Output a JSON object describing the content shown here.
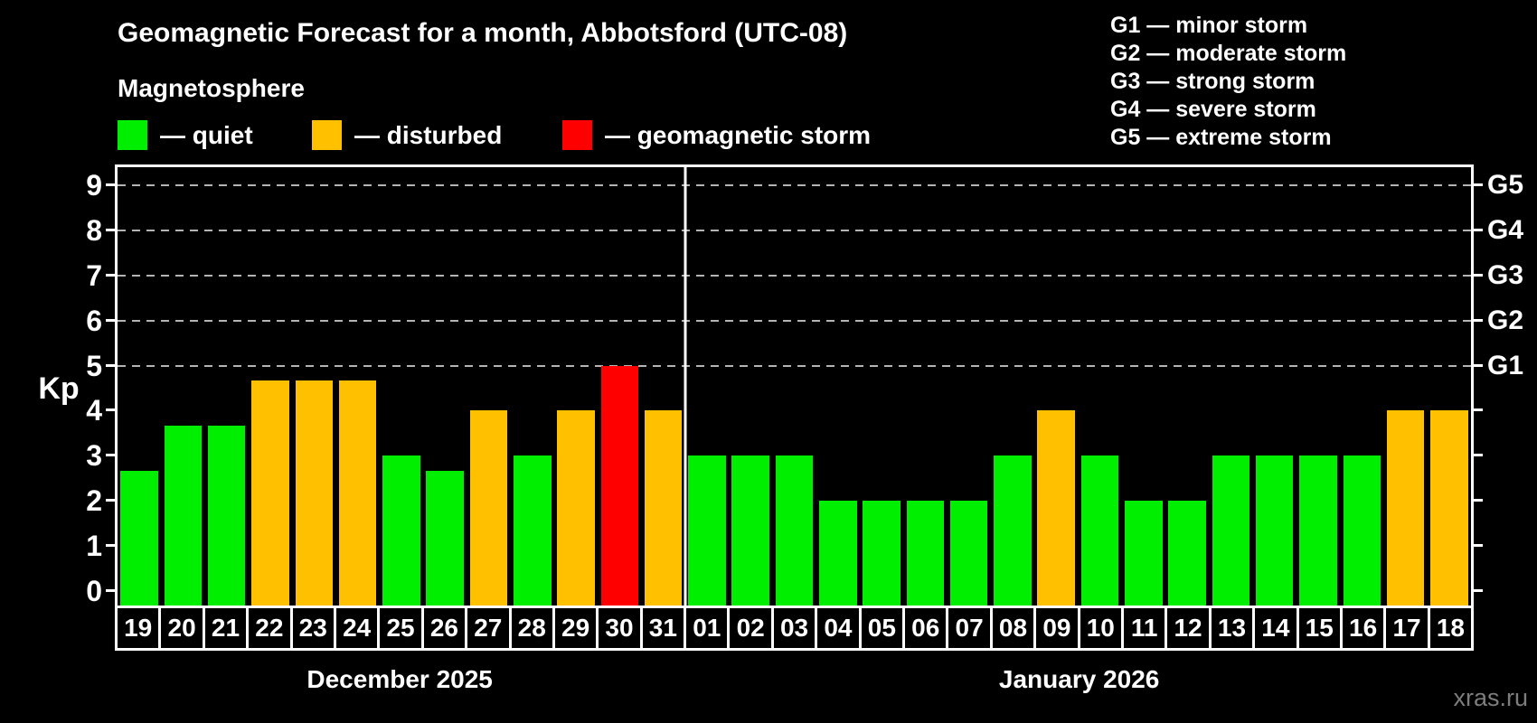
{
  "watermark": "xras.ru",
  "colors": {
    "quiet": "#00EE00",
    "disturbed": "#FFC000",
    "storm": "#FF0000",
    "grid": "#B4B4B4",
    "axis": "#FFFFFF",
    "watermark": "#7D7D7D",
    "background": "#000000"
  },
  "legend": {
    "title": "Magnetosphere",
    "items": [
      {
        "label": "— quiet",
        "status": "quiet"
      },
      {
        "label": "— disturbed",
        "status": "disturbed"
      },
      {
        "label": "— geomagnetic storm",
        "status": "storm"
      }
    ]
  },
  "storm_scale": [
    "G1 — minor storm",
    "G2 — moderate storm",
    "G3 — strong storm",
    "G4 — severe storm",
    "G5 — extreme storm"
  ],
  "chart_data": {
    "type": "bar",
    "title": "Geomagnetic Forecast for a month, Abbotsford (UTC-08)",
    "ylabel": "Kp",
    "ylim": [
      -0.32,
      9.4
    ],
    "yticks": [
      0,
      1,
      2,
      3,
      4,
      5,
      6,
      7,
      8,
      9
    ],
    "gridlines": [
      5,
      6,
      7,
      8,
      9
    ],
    "right_axis": [
      {
        "value": 5,
        "label": "G1"
      },
      {
        "value": 6,
        "label": "G2"
      },
      {
        "value": 7,
        "label": "G3"
      },
      {
        "value": 8,
        "label": "G4"
      },
      {
        "value": 9,
        "label": "G5"
      }
    ],
    "legend_position": "top",
    "grid": "dashed-horizontal-5-to-9",
    "months": [
      {
        "label": "December 2025",
        "days": [
          {
            "day": "19",
            "kp": 2.67,
            "status": "quiet"
          },
          {
            "day": "20",
            "kp": 3.67,
            "status": "quiet"
          },
          {
            "day": "21",
            "kp": 3.67,
            "status": "quiet"
          },
          {
            "day": "22",
            "kp": 4.67,
            "status": "disturbed"
          },
          {
            "day": "23",
            "kp": 4.67,
            "status": "disturbed"
          },
          {
            "day": "24",
            "kp": 4.67,
            "status": "disturbed"
          },
          {
            "day": "25",
            "kp": 3.0,
            "status": "quiet"
          },
          {
            "day": "26",
            "kp": 2.67,
            "status": "quiet"
          },
          {
            "day": "27",
            "kp": 4.0,
            "status": "disturbed"
          },
          {
            "day": "28",
            "kp": 3.0,
            "status": "quiet"
          },
          {
            "day": "29",
            "kp": 4.0,
            "status": "disturbed"
          },
          {
            "day": "30",
            "kp": 5.0,
            "status": "storm"
          },
          {
            "day": "31",
            "kp": 4.0,
            "status": "disturbed"
          }
        ]
      },
      {
        "label": "January 2026",
        "days": [
          {
            "day": "01",
            "kp": 3.0,
            "status": "quiet"
          },
          {
            "day": "02",
            "kp": 3.0,
            "status": "quiet"
          },
          {
            "day": "03",
            "kp": 3.0,
            "status": "quiet"
          },
          {
            "day": "04",
            "kp": 2.0,
            "status": "quiet"
          },
          {
            "day": "05",
            "kp": 2.0,
            "status": "quiet"
          },
          {
            "day": "06",
            "kp": 2.0,
            "status": "quiet"
          },
          {
            "day": "07",
            "kp": 2.0,
            "status": "quiet"
          },
          {
            "day": "08",
            "kp": 3.0,
            "status": "quiet"
          },
          {
            "day": "09",
            "kp": 4.0,
            "status": "disturbed"
          },
          {
            "day": "10",
            "kp": 3.0,
            "status": "quiet"
          },
          {
            "day": "11",
            "kp": 2.0,
            "status": "quiet"
          },
          {
            "day": "12",
            "kp": 2.0,
            "status": "quiet"
          },
          {
            "day": "13",
            "kp": 3.0,
            "status": "quiet"
          },
          {
            "day": "14",
            "kp": 3.0,
            "status": "quiet"
          },
          {
            "day": "15",
            "kp": 3.0,
            "status": "quiet"
          },
          {
            "day": "16",
            "kp": 3.0,
            "status": "quiet"
          },
          {
            "day": "17",
            "kp": 4.0,
            "status": "disturbed"
          },
          {
            "day": "18",
            "kp": 4.0,
            "status": "disturbed"
          }
        ]
      }
    ]
  }
}
